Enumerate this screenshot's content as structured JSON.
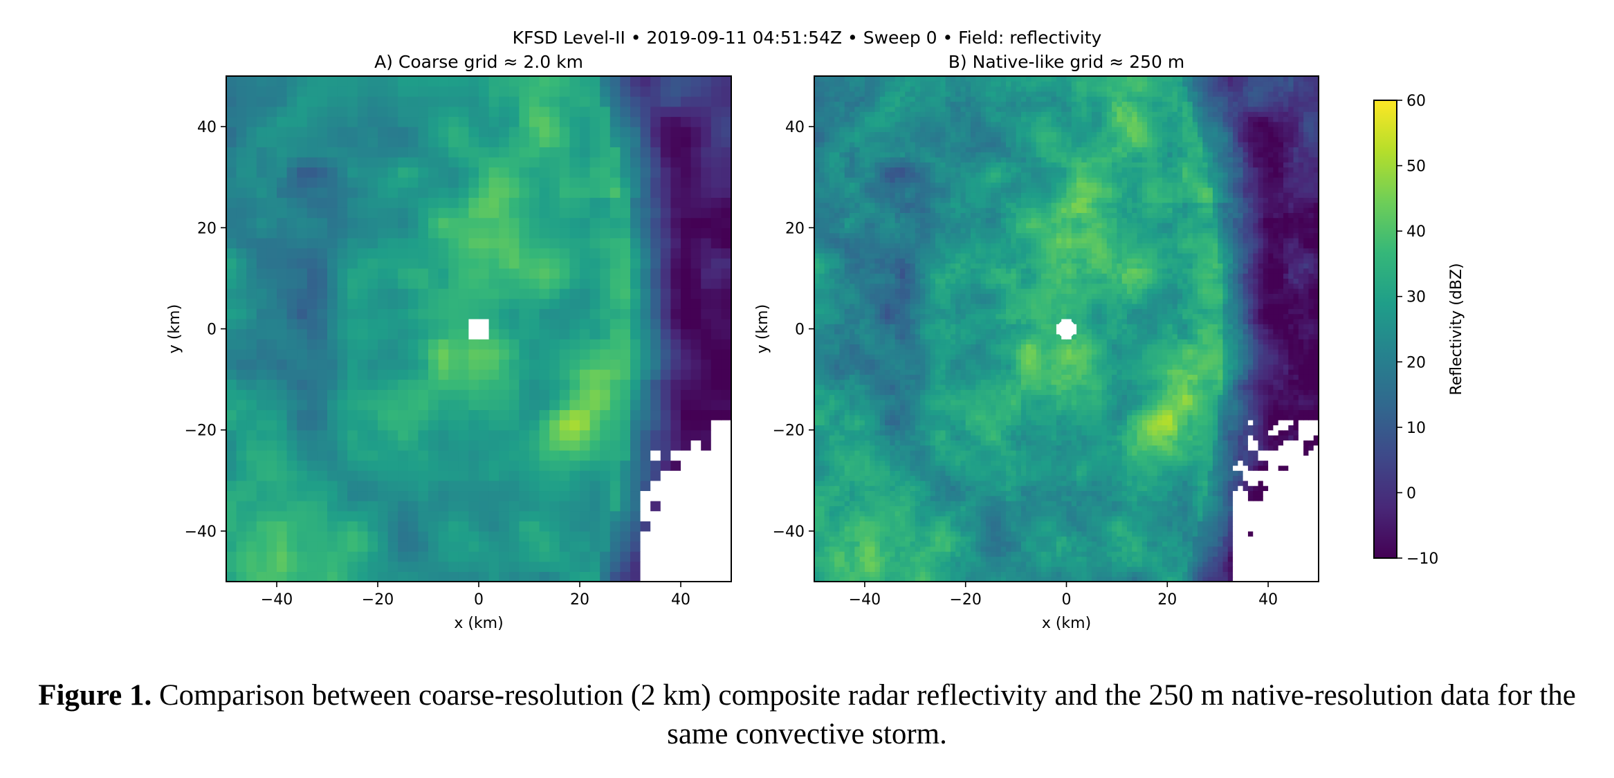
{
  "figure": {
    "suptitle": "KFSD Level-II  •  2019-09-11 04:51:54Z  •  Sweep 0  •  Field: reflectivity",
    "caption_label": "Figure 1.",
    "caption_text": " Comparison between coarse-resolution (2 km) composite radar reflectivity and the 250 m native-resolution data for the same convective storm."
  },
  "chart_data": [
    {
      "type": "heatmap",
      "title": "A) Coarse grid ≈ 2.0 km",
      "xlabel": "x (km)",
      "ylabel": "y (km)",
      "xlim": [
        -50,
        50
      ],
      "ylim": [
        -50,
        50
      ],
      "xticks": [
        -40,
        -20,
        0,
        20,
        40
      ],
      "yticks": [
        -40,
        -20,
        0,
        20,
        40
      ],
      "xtick_labels": [
        "−40",
        "−20",
        "0",
        "20",
        "40"
      ],
      "ytick_labels": [
        "−40",
        "−20",
        "0",
        "20",
        "40"
      ],
      "grid_resolution_km": 2.0,
      "colormap": "viridis",
      "value_range": [
        -10,
        60
      ],
      "features": {
        "max_reflectivity_dbz": 60,
        "max_core_location_km": [
          18,
          -20
        ],
        "secondary_core_location_km": [
          23,
          -10
        ],
        "radar_site_km": [
          0,
          0
        ],
        "no_data_region": "lower-right (x > 33 km, y < -20 km)"
      }
    },
    {
      "type": "heatmap",
      "title": "B) Native-like grid ≈ 250 m",
      "xlabel": "x (km)",
      "ylabel": "y (km)",
      "xlim": [
        -50,
        50
      ],
      "ylim": [
        -50,
        50
      ],
      "xticks": [
        -40,
        -20,
        0,
        20,
        40
      ],
      "yticks": [
        -40,
        -20,
        0,
        20,
        40
      ],
      "xtick_labels": [
        "−40",
        "−20",
        "0",
        "20",
        "40"
      ],
      "ytick_labels": [
        "−40",
        "−20",
        "0",
        "20",
        "40"
      ],
      "grid_resolution_km": 0.25,
      "colormap": "viridis",
      "value_range": [
        -10,
        60
      ],
      "features": {
        "max_reflectivity_dbz": 60,
        "max_core_location_km": [
          18,
          -20
        ],
        "secondary_core_location_km": [
          23,
          -10
        ],
        "radar_site_km": [
          0,
          0
        ],
        "no_data_region": "lower-right (x > 33 km, y < -20 km)"
      }
    }
  ],
  "colorbar": {
    "label": "Reflectivity (dBZ)",
    "min": -10,
    "max": 60,
    "ticks": [
      -10,
      0,
      10,
      20,
      30,
      40,
      50,
      60
    ],
    "tick_labels": [
      "−10",
      "0",
      "10",
      "20",
      "30",
      "40",
      "50",
      "60"
    ],
    "colors": [
      "#440154",
      "#482878",
      "#3e4989",
      "#31688e",
      "#26828e",
      "#1f9e89",
      "#35b779",
      "#6ece58",
      "#b5de2b",
      "#fde725"
    ]
  }
}
